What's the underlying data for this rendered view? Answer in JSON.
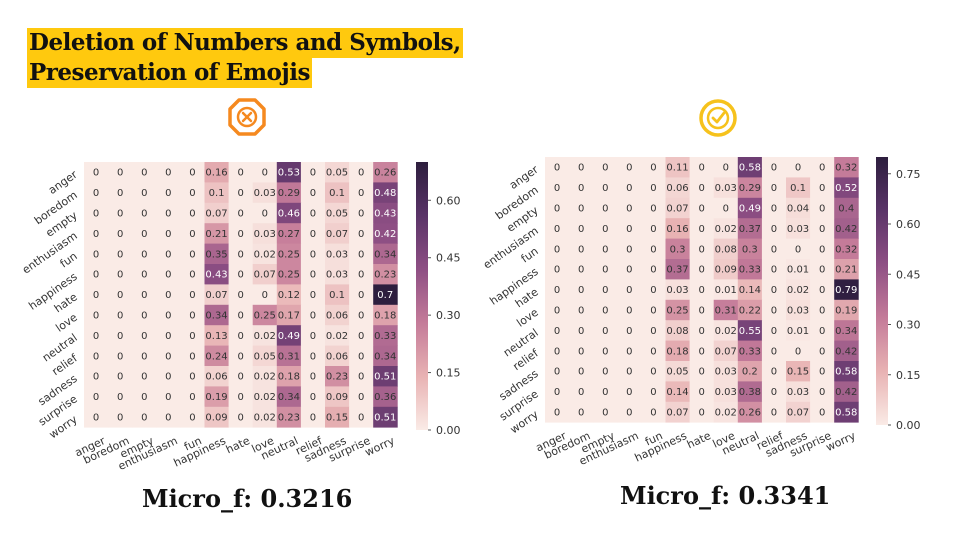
{
  "title": {
    "line1": "Deletion of Numbers and Symbols,",
    "line2": "Preservation of Emojis"
  },
  "icons": {
    "left": {
      "name": "x-octagon-icon",
      "color": "#f5891f"
    },
    "right": {
      "name": "checkmark-circle-icon",
      "color": "#f6c21c"
    }
  },
  "colors": {
    "accent": "#ffc90e",
    "cmap": [
      "#faebe6",
      "#e8b2b3",
      "#c47b99",
      "#8e4f84",
      "#5a3468",
      "#2d1e3e"
    ]
  },
  "scores": {
    "left": "Micro_f: 0.3216",
    "right": "Micro_f: 0.3341"
  },
  "chart_data": [
    {
      "type": "heatmap",
      "labels": [
        "anger",
        "boredom",
        "empty",
        "enthusiasm",
        "fun",
        "happiness",
        "hate",
        "love",
        "neutral",
        "relief",
        "sadness",
        "surprise",
        "worry"
      ],
      "xtick_labels": [
        "anger",
        "boredom",
        "empty",
        "enthusiasm",
        "fun",
        "happiness",
        "hate",
        "love",
        "neutral",
        "relief",
        "sadness",
        "surprise",
        "worry"
      ],
      "ytick_labels": [
        "anger",
        "boredom",
        "empty",
        "enthusiasm",
        "fun",
        "happiness",
        "hate",
        "love",
        "neutral",
        "relief",
        "sadness",
        "surprise",
        "worry"
      ],
      "colorbar": {
        "min": 0,
        "max": 0.7,
        "ticks": [
          0.0,
          0.15,
          0.3,
          0.45,
          0.6
        ],
        "tick_labels": [
          "0.00",
          "0.15",
          "0.30",
          "0.45",
          "0.60"
        ]
      },
      "matrix": [
        [
          0,
          0,
          0,
          0,
          0,
          0.16,
          0,
          0,
          0.53,
          0,
          0.05,
          0,
          0.26
        ],
        [
          0,
          0,
          0,
          0,
          0,
          0.1,
          0,
          0.03,
          0.29,
          0,
          0.1,
          0,
          0.48
        ],
        [
          0,
          0,
          0,
          0,
          0,
          0.07,
          0,
          0,
          0.46,
          0,
          0.05,
          0,
          0.43
        ],
        [
          0,
          0,
          0,
          0,
          0,
          0.21,
          0,
          0.03,
          0.27,
          0,
          0.07,
          0,
          0.42
        ],
        [
          0,
          0,
          0,
          0,
          0,
          0.35,
          0,
          0.02,
          0.25,
          0,
          0.03,
          0,
          0.34
        ],
        [
          0,
          0,
          0,
          0,
          0,
          0.43,
          0,
          0.07,
          0.25,
          0,
          0.03,
          0,
          0.23
        ],
        [
          0,
          0,
          0,
          0,
          0,
          0.07,
          0,
          0,
          0.12,
          0,
          0.1,
          0,
          0.7
        ],
        [
          0,
          0,
          0,
          0,
          0,
          0.34,
          0,
          0.25,
          0.17,
          0,
          0.06,
          0,
          0.18
        ],
        [
          0,
          0,
          0,
          0,
          0,
          0.13,
          0,
          0.02,
          0.49,
          0,
          0.02,
          0,
          0.33
        ],
        [
          0,
          0,
          0,
          0,
          0,
          0.24,
          0,
          0.05,
          0.31,
          0,
          0.06,
          0,
          0.34
        ],
        [
          0,
          0,
          0,
          0,
          0,
          0.06,
          0,
          0.02,
          0.18,
          0,
          0.23,
          0,
          0.51
        ],
        [
          0,
          0,
          0,
          0,
          0,
          0.19,
          0,
          0.02,
          0.34,
          0,
          0.09,
          0,
          0.36
        ],
        [
          0,
          0,
          0,
          0,
          0,
          0.09,
          0,
          0.02,
          0.23,
          0,
          0.15,
          0,
          0.51
        ]
      ]
    },
    {
      "type": "heatmap",
      "labels": [
        "anger",
        "boredom",
        "empty",
        "enthusiasm",
        "fun",
        "happiness",
        "hate",
        "love",
        "neutral",
        "relief",
        "sadness",
        "surprise",
        "worry"
      ],
      "xtick_labels": [
        "anger",
        "boredom",
        "empty",
        "enthusiasm",
        "fun",
        "happiness",
        "hate",
        "love",
        "neutral",
        "relief",
        "sadness",
        "surprise",
        "worry"
      ],
      "ytick_labels": [
        "anger",
        "boredom",
        "empty",
        "enthusiasm",
        "fun",
        "happiness",
        "hate",
        "love",
        "neutral",
        "relief",
        "sadness",
        "surprise",
        "worry"
      ],
      "colorbar": {
        "min": 0,
        "max": 0.8,
        "ticks": [
          0.0,
          0.15,
          0.3,
          0.45,
          0.6,
          0.75
        ],
        "tick_labels": [
          "0.00",
          "0.15",
          "0.30",
          "0.45",
          "0.60",
          "0.75"
        ]
      },
      "matrix": [
        [
          0,
          0,
          0,
          0,
          0,
          0.11,
          0,
          0,
          0.58,
          0,
          0,
          0,
          0.32
        ],
        [
          0,
          0,
          0,
          0,
          0,
          0.06,
          0,
          0.03,
          0.29,
          0,
          0.1,
          0,
          0.52
        ],
        [
          0,
          0,
          0,
          0,
          0,
          0.07,
          0,
          0,
          0.49,
          0,
          0.04,
          0,
          0.4
        ],
        [
          0,
          0,
          0,
          0,
          0,
          0.16,
          0,
          0.02,
          0.37,
          0,
          0.03,
          0,
          0.42
        ],
        [
          0,
          0,
          0,
          0,
          0,
          0.3,
          0,
          0.08,
          0.3,
          0,
          0,
          0,
          0.32
        ],
        [
          0,
          0,
          0,
          0,
          0,
          0.37,
          0,
          0.09,
          0.33,
          0,
          0.01,
          0,
          0.21
        ],
        [
          0,
          0,
          0,
          0,
          0,
          0.03,
          0,
          0.01,
          0.14,
          0,
          0.02,
          0,
          0.79
        ],
        [
          0,
          0,
          0,
          0,
          0,
          0.25,
          0,
          0.31,
          0.22,
          0,
          0.03,
          0,
          0.19
        ],
        [
          0,
          0,
          0,
          0,
          0,
          0.08,
          0,
          0.02,
          0.55,
          0,
          0.01,
          0,
          0.34
        ],
        [
          0,
          0,
          0,
          0,
          0,
          0.18,
          0,
          0.07,
          0.33,
          0,
          0,
          0,
          0.42
        ],
        [
          0,
          0,
          0,
          0,
          0,
          0.05,
          0,
          0.03,
          0.2,
          0,
          0.15,
          0,
          0.58
        ],
        [
          0,
          0,
          0,
          0,
          0,
          0.14,
          0,
          0.03,
          0.38,
          0,
          0.03,
          0,
          0.42
        ],
        [
          0,
          0,
          0,
          0,
          0,
          0.07,
          0,
          0.02,
          0.26,
          0,
          0.07,
          0,
          0.58
        ]
      ]
    }
  ]
}
